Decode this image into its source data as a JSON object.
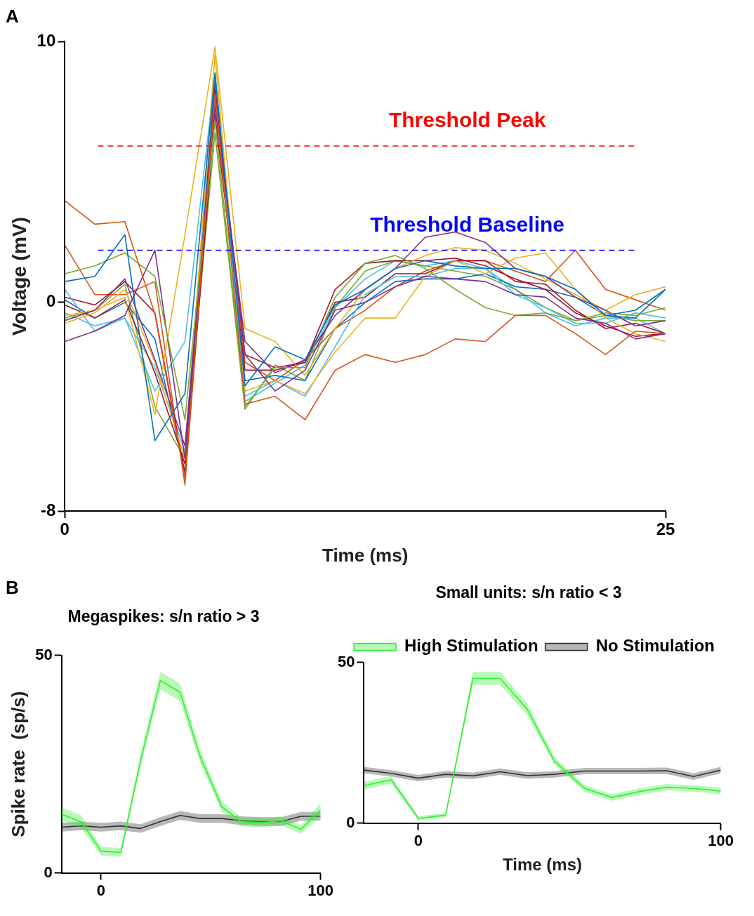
{
  "chart_data": [
    {
      "type": "line",
      "annotations": [
        "A"
      ],
      "xlabel": "Time (ms)",
      "ylabel": "Voltage (mV)",
      "x": [
        0,
        1.25,
        2.5,
        3.75,
        5,
        6.25,
        7.5,
        8.75,
        10,
        11.25,
        12.5,
        13.75,
        15,
        16.25,
        17.5,
        18.75,
        20,
        21.25,
        22.5,
        23.75,
        25
      ],
      "xlim": [
        0,
        25
      ],
      "xticks": [
        0,
        25
      ],
      "ylim": [
        -8,
        10
      ],
      "yticks": [
        -8,
        0,
        10
      ],
      "grid": false,
      "legend": false,
      "marker": "none",
      "line_style": "solid",
      "ref_lines": [
        {
          "axis": "y",
          "value": 6,
          "label": "Threshold Peak",
          "color": "#ff0000",
          "line_style": "dashed"
        },
        {
          "axis": "y",
          "value": 2,
          "label": "Threshold Baseline",
          "color": "#0000ff",
          "line_style": "dashed"
        }
      ],
      "series": [
        {
          "color": "#d95319",
          "values": [
            3.9,
            3.0,
            3.1,
            -0.45,
            -6.75,
            8.0,
            -3.9,
            -3.6,
            -4.5,
            -2.6,
            -2.0,
            -2.3,
            -2.0,
            -1.4,
            -1.5,
            -0.5,
            -0.5,
            -1.2,
            -2.0,
            -1.1,
            -1.2
          ]
        },
        {
          "color": "#0072bd",
          "values": [
            0.8,
            1.0,
            2.6,
            -5.3,
            -3.5,
            8.8,
            -3.2,
            -1.7,
            -2.2,
            -0.1,
            0.5,
            1.3,
            1.6,
            1.4,
            1.3,
            1.3,
            1.0,
            0.5,
            -0.5,
            -0.3,
            0.5
          ]
        },
        {
          "color": "#77ac30",
          "values": [
            1.1,
            1.4,
            1.9,
            1.0,
            -4.5,
            7.0,
            -4.0,
            -2.5,
            -2.5,
            0.2,
            1.5,
            1.8,
            1.3,
            0.5,
            -0.2,
            -0.5,
            -0.4,
            -0.7,
            -0.4,
            -0.5,
            -0.2
          ]
        },
        {
          "color": "#7e2f8e",
          "values": [
            -0.7,
            -0.3,
            0.9,
            -2.2,
            -5.5,
            7.5,
            -1.5,
            -2.7,
            -2.2,
            -0.5,
            0.5,
            1.3,
            2.5,
            2.7,
            2.3,
            1.3,
            1.0,
            0.2,
            -0.3,
            -0.9,
            -0.7
          ]
        },
        {
          "color": "#7e2f8e",
          "values": [
            -1.5,
            -1.1,
            -0.5,
            2.0,
            -6.0,
            8.0,
            -2.0,
            -3.4,
            -2.6,
            -0.3,
            0.0,
            0.6,
            1.0,
            0.9,
            0.8,
            0.3,
            0.2,
            -0.6,
            -0.8,
            -1.4,
            -1.2
          ]
        },
        {
          "color": "#edb120",
          "values": [
            -0.5,
            -0.3,
            0.2,
            -4.3,
            2.6,
            9.8,
            -1.0,
            -1.5,
            -2.8,
            -1.0,
            0.5,
            1.3,
            1.8,
            2.1,
            2.0,
            1.5,
            0.9,
            0.3,
            -0.3,
            0.3,
            0.6
          ]
        },
        {
          "color": "#edb120",
          "values": [
            -0.8,
            -0.4,
            0.5,
            -2.3,
            -6.0,
            9.5,
            -3.4,
            -3.0,
            -3.5,
            -1.9,
            -0.6,
            -0.6,
            1.0,
            1.6,
            1.1,
            1.7,
            1.9,
            0.5,
            -0.6,
            -1.2,
            -1.5
          ]
        },
        {
          "color": "#4dbeee",
          "values": [
            0.5,
            -1.1,
            -0.6,
            -3.4,
            -1.5,
            8.8,
            -3.6,
            -3.0,
            -3.6,
            -1.7,
            0.3,
            1.0,
            1.0,
            1.3,
            1.3,
            0.3,
            -0.2,
            -0.8,
            -0.8,
            -0.4,
            -0.6
          ]
        },
        {
          "color": "#a2142f",
          "values": [
            -0.1,
            -0.6,
            0.1,
            -2.7,
            -6.2,
            8.2,
            -2.0,
            -2.5,
            -2.3,
            0.5,
            1.5,
            1.6,
            1.6,
            1.7,
            1.4,
            0.9,
            0.5,
            -0.4,
            -0.9,
            -1.3,
            -1.2
          ]
        },
        {
          "color": "#a2142f",
          "values": [
            0.2,
            -0.1,
            0.8,
            -0.4,
            -6.6,
            7.2,
            -2.6,
            -2.6,
            -2.3,
            0.0,
            0.2,
            1.1,
            1.1,
            1.6,
            1.6,
            0.8,
            0.7,
            -0.3,
            -1.0,
            -0.8,
            -1.2
          ]
        },
        {
          "color": "#0072bd",
          "values": [
            0.1,
            -0.6,
            0.0,
            -1.4,
            -6.5,
            8.5,
            -3.0,
            -2.8,
            -3.0,
            -1.0,
            0.0,
            0.8,
            0.9,
            0.9,
            1.1,
            0.6,
            0.5,
            0.2,
            -0.5,
            -0.6,
            0.5
          ]
        },
        {
          "color": "#d95319",
          "values": [
            2.2,
            0.3,
            0.3,
            0.8,
            -7.0,
            7.8,
            -2.3,
            -3.0,
            -2.2,
            -1.0,
            -0.3,
            0.6,
            1.2,
            1.6,
            1.6,
            1.2,
            0.8,
            2.0,
            0.5,
            0.1,
            -0.3
          ]
        },
        {
          "color": "#77ac30",
          "values": [
            -0.6,
            -0.3,
            0.7,
            -4.0,
            -6.0,
            6.5,
            -4.1,
            -2.4,
            -3.0,
            -0.2,
            1.2,
            1.6,
            1.4,
            1.2,
            1.0,
            0.5,
            -0.2,
            -0.7,
            -0.5,
            -0.7,
            -0.7
          ]
        },
        {
          "color": "#4dbeee",
          "values": [
            -0.4,
            -0.9,
            -0.6,
            -2.5,
            -5.7,
            8.7,
            -3.8,
            -3.1,
            -2.4,
            -0.2,
            0.9,
            1.6,
            1.4,
            1.6,
            1.3,
            0.5,
            -0.4,
            -0.9,
            -0.6,
            -0.6,
            -1.2
          ]
        }
      ]
    },
    {
      "type": "line",
      "annotations": [
        "B"
      ],
      "title": "Megaspikes: s/n ratio > 3",
      "ylabel": "Spike rate  (sp/s)",
      "x": [
        -18,
        -9,
        0,
        9,
        18,
        27,
        36,
        45,
        55,
        64,
        73,
        82,
        91,
        100
      ],
      "xlim": [
        -18,
        100
      ],
      "xticks": [
        0,
        100
      ],
      "ylim": [
        0,
        50
      ],
      "yticks": [
        0,
        50
      ],
      "grid": false,
      "legend": false,
      "marker": "none",
      "series": [
        {
          "color": "#33ee33",
          "values": [
            13.5,
            11.7,
            5,
            4.7,
            25.8,
            44.2,
            41.5,
            26.9,
            15.2,
            11.7,
            11.5,
            12,
            10,
            14.5
          ],
          "lower": [
            12,
            10.2,
            4,
            3.7,
            24.3,
            42.2,
            39.5,
            25.4,
            14,
            10.7,
            10.5,
            11,
            9,
            13
          ],
          "upper": [
            15,
            13.2,
            6,
            5.7,
            27.3,
            46.2,
            43.5,
            28.4,
            16.4,
            12.7,
            12.5,
            13,
            11,
            16
          ]
        },
        {
          "color": "#333333",
          "values": [
            10.5,
            10.8,
            10.5,
            10.8,
            10.2,
            11.8,
            13.2,
            12.5,
            12.5,
            12,
            11.8,
            11.8,
            13,
            13
          ],
          "lower": [
            9.5,
            9.8,
            9.5,
            9.8,
            9.2,
            10.8,
            12.2,
            11.5,
            11.5,
            11,
            10.8,
            10.8,
            12,
            12
          ],
          "upper": [
            11.5,
            11.8,
            11.5,
            11.8,
            11.2,
            12.8,
            14.2,
            13.5,
            13.5,
            13,
            12.8,
            12.8,
            14,
            14
          ]
        }
      ]
    },
    {
      "type": "line",
      "title": "Small units: s/n ratio < 3",
      "xlabel": "Time (ms)",
      "x": [
        -18,
        -9,
        0,
        9,
        18,
        27,
        36,
        45,
        55,
        64,
        73,
        82,
        91,
        100
      ],
      "xlim": [
        -18,
        100
      ],
      "xticks": [
        0,
        100
      ],
      "ylim": [
        0,
        50
      ],
      "yticks": [
        0,
        50
      ],
      "grid": false,
      "legend": "top right",
      "marker": "none",
      "series": [
        {
          "name": "High Stimulation",
          "color": "#33ee33",
          "values": [
            11.7,
            13.5,
            1.5,
            2.5,
            45,
            45,
            35.4,
            19.3,
            10.8,
            8,
            9.8,
            11.2,
            10.8,
            10
          ],
          "lower": [
            10.5,
            12.3,
            0.8,
            1.8,
            43,
            43,
            33.6,
            18.1,
            9.8,
            7,
            8.8,
            10.2,
            9.8,
            9
          ],
          "upper": [
            12.9,
            14.7,
            2.2,
            3.2,
            47,
            47,
            37.2,
            20.5,
            11.8,
            9,
            10.8,
            12.2,
            11.8,
            11
          ]
        },
        {
          "name": "No Stimulation",
          "color": "#333333",
          "values": [
            16.5,
            15.5,
            14,
            15.2,
            14.7,
            16,
            14.8,
            15.2,
            16.2,
            16.2,
            16.2,
            16.3,
            14.5,
            16.5
          ],
          "lower": [
            15.5,
            14.5,
            13,
            14.2,
            13.7,
            15,
            13.8,
            14.2,
            15.2,
            15.2,
            15.2,
            15.3,
            13.5,
            15.5
          ],
          "upper": [
            17.5,
            16.5,
            15,
            16.2,
            15.7,
            17,
            15.8,
            16.2,
            17.2,
            17.2,
            17.2,
            17.3,
            15.5,
            17.5
          ]
        }
      ]
    }
  ]
}
